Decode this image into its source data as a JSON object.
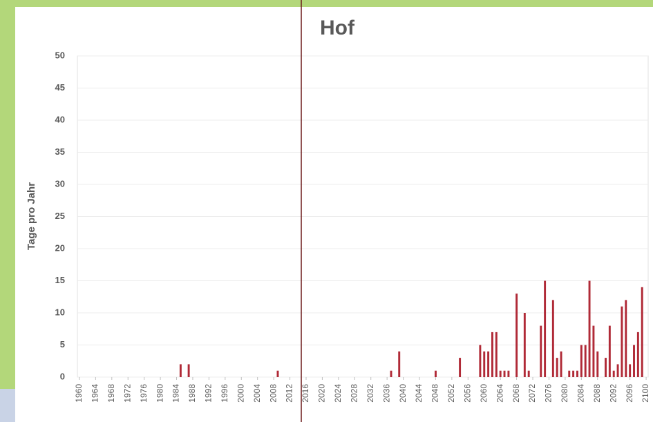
{
  "chart_data": {
    "type": "bar",
    "title": "Hof",
    "y_label": "Tage pro Jahr",
    "x": [
      1985,
      1987,
      2009,
      2037,
      2039,
      2048,
      2054,
      2059,
      2060,
      2061,
      2062,
      2063,
      2064,
      2065,
      2066,
      2068,
      2070,
      2071,
      2074,
      2075,
      2077,
      2078,
      2079,
      2081,
      2082,
      2083,
      2084,
      2085,
      2086,
      2087,
      2088,
      2090,
      2091,
      2092,
      2093,
      2094,
      2095,
      2096,
      2097,
      2098,
      2099
    ],
    "values": [
      2,
      2,
      1,
      1,
      4,
      1,
      3,
      5,
      4,
      4,
      7,
      7,
      1,
      1,
      1,
      13,
      10,
      1,
      8,
      15,
      12,
      3,
      4,
      1,
      1,
      1,
      5,
      5,
      15,
      8,
      4,
      3,
      8,
      1,
      2,
      11,
      12,
      2,
      5,
      7,
      14
    ],
    "color": "#b02a37",
    "xlim": [
      1959.5,
      2100.5
    ],
    "xticks": [
      1960,
      1964,
      1968,
      1972,
      1976,
      1980,
      1984,
      1988,
      1992,
      1996,
      2000,
      2004,
      2008,
      2012,
      2016,
      2020,
      2024,
      2028,
      2032,
      2036,
      2040,
      2044,
      2048,
      2052,
      2056,
      2060,
      2064,
      2068,
      2072,
      2076,
      2080,
      2084,
      2088,
      2092,
      2096,
      2100
    ],
    "ylim": [
      0,
      50
    ],
    "yticks": [
      0,
      5,
      10,
      15,
      20,
      25,
      30,
      35,
      40,
      45,
      50
    ],
    "grid": true
  }
}
